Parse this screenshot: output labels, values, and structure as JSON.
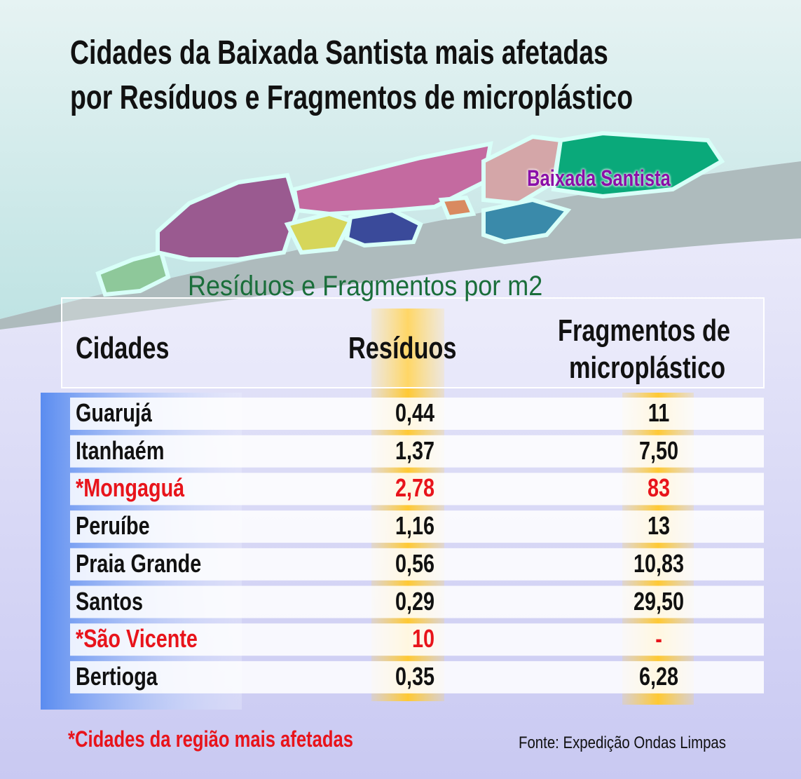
{
  "header": {
    "title": [
      "Cidades da Baixada Santista mais afetadas",
      "por Resíduos e Fragmentos de microplástico"
    ],
    "map_label": "Baixada Santista"
  },
  "table": {
    "subtitle": "Resíduos e Fragmentos por m2",
    "columns": [
      "Cidades",
      "Resíduos",
      [
        "Fragmentos de",
        "microplástico"
      ]
    ],
    "rows": [
      {
        "city": "Guarujá",
        "residuos": "0,44",
        "fragmentos": "11",
        "highlight": false
      },
      {
        "city": "Itanhaém",
        "residuos": "1,37",
        "fragmentos": "7,50",
        "highlight": false
      },
      {
        "city": "*Mongaguá",
        "residuos": "2,78",
        "fragmentos": "83",
        "highlight": true
      },
      {
        "city": "Peruíbe",
        "residuos": "1,16",
        "fragmentos": "13",
        "highlight": false
      },
      {
        "city": "Praia Grande",
        "residuos": "0,56",
        "fragmentos": "10,83",
        "highlight": false
      },
      {
        "city": "Santos",
        "residuos": "0,29",
        "fragmentos": "29,50",
        "highlight": false
      },
      {
        "city": "*São Vicente",
        "residuos": "10",
        "fragmentos": "-",
        "highlight": true
      },
      {
        "city": "Bertioga",
        "residuos": "0,35",
        "fragmentos": "6,28",
        "highlight": false
      }
    ]
  },
  "footer": {
    "note": "*Cidades da região mais afetadas",
    "source": "Fonte: Expedição Ondas Limpas"
  }
}
